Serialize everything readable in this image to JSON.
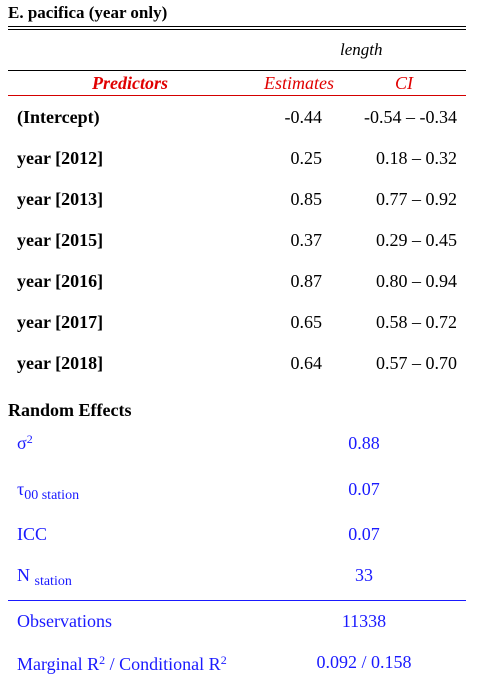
{
  "title": "E. pacifica (year only)",
  "dependent_variable": "length",
  "headers": {
    "predictors": "Predictors",
    "estimates": "Estimates",
    "ci": "CI"
  },
  "rows": [
    {
      "label": "(Intercept)",
      "estimate": "-0.44",
      "ci": "-0.54 – -0.34"
    },
    {
      "label": "year [2012]",
      "estimate": "0.25",
      "ci": "0.18 – 0.32"
    },
    {
      "label": "year [2013]",
      "estimate": "0.85",
      "ci": "0.77 – 0.92"
    },
    {
      "label": "year [2015]",
      "estimate": "0.37",
      "ci": "0.29 – 0.45"
    },
    {
      "label": "year [2016]",
      "estimate": "0.87",
      "ci": "0.80 – 0.94"
    },
    {
      "label": "year [2017]",
      "estimate": "0.65",
      "ci": "0.58 – 0.72"
    },
    {
      "label": "year [2018]",
      "estimate": "0.64",
      "ci": "0.57 – 0.70"
    }
  ],
  "random_effects": {
    "title": "Random Effects",
    "sigma_symbol": "σ",
    "sigma_sup": "2",
    "sigma_value": "0.88",
    "tau_symbol": "τ",
    "tau_sub": "00 station",
    "tau_value": "0.07",
    "icc_label": "ICC",
    "icc_value": "0.07",
    "n_label": "N",
    "n_sub": "station",
    "n_value": "33"
  },
  "model_fit": {
    "observations_label": "Observations",
    "observations_value": "11338",
    "r2_label_a": "Marginal R",
    "r2_sup_a": "2",
    "r2_label_mid": " / Conditional R",
    "r2_sup_b": "2",
    "r2_value": "0.092 / 0.158"
  }
}
